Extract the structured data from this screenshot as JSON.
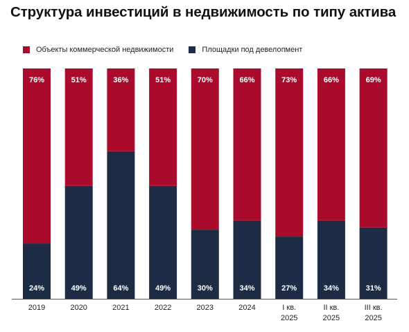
{
  "chart_data": {
    "type": "bar",
    "stacked": true,
    "title": "Структура инвестиций в недвижимость по типу актива",
    "categories": [
      "2019",
      "2020",
      "2021",
      "2022",
      "2023",
      "2024",
      "I кв.\n2025",
      "II кв.\n2025",
      "III кв.\n2025"
    ],
    "series": [
      {
        "name": "Площадки под девелопмент",
        "color": "#1e2b44",
        "values": [
          24,
          49,
          64,
          49,
          30,
          34,
          27,
          34,
          31
        ],
        "labels": [
          "24%",
          "49%",
          "64%",
          "49%",
          "30%",
          "34%",
          "27%",
          "34%",
          "31%"
        ]
      },
      {
        "name": "Объекты коммерческой недвижимости",
        "color": "#ab0b2c",
        "values": [
          76,
          51,
          36,
          51,
          70,
          66,
          73,
          66,
          69
        ],
        "labels": [
          "76%",
          "51%",
          "36%",
          "51%",
          "70%",
          "66%",
          "73%",
          "66%",
          "69%"
        ]
      }
    ],
    "legend": [
      "Объекты коммерческой недвижимости",
      "Площадки под девелопмент"
    ],
    "ylim": [
      0,
      100
    ],
    "legend_position": "top-left",
    "grid": false
  }
}
